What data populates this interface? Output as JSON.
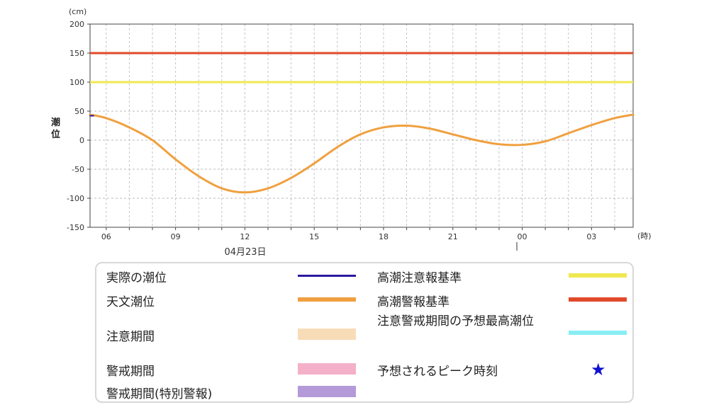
{
  "chart_data": {
    "type": "line",
    "title": "",
    "ylabel": "潮位",
    "yunit": "(cm)",
    "xunit": "(時)",
    "date_label": "04月23日",
    "ylim": [
      -150,
      200
    ],
    "yticks": [
      200,
      150,
      100,
      50,
      0,
      -50,
      -100,
      -150
    ],
    "xlim_hours": [
      5.3,
      28.8
    ],
    "xticks": [
      {
        "hour": 6,
        "label": "06"
      },
      {
        "hour": 9,
        "label": "09"
      },
      {
        "hour": 12,
        "label": "12"
      },
      {
        "hour": 15,
        "label": "15"
      },
      {
        "hour": 18,
        "label": "18"
      },
      {
        "hour": 21,
        "label": "21"
      },
      {
        "hour": 24,
        "label": "00"
      },
      {
        "hour": 27,
        "label": "03"
      }
    ],
    "grid": true,
    "reference_lines": [
      {
        "name": "高潮警報基準",
        "value": 150,
        "color": "#e04a2a"
      },
      {
        "name": "高潮注意報基準",
        "value": 100,
        "color": "#f0e850"
      }
    ],
    "series": [
      {
        "name": "天文潮位",
        "color": "#f0a040",
        "x": [
          5.3,
          6,
          7,
          8,
          9,
          10,
          11,
          12,
          13,
          14,
          15,
          16,
          17,
          18,
          19,
          20,
          21,
          22,
          23,
          24,
          25,
          26,
          27,
          28,
          28.8
        ],
        "y": [
          44,
          38,
          22,
          0,
          -33,
          -62,
          -83,
          -90,
          -83,
          -65,
          -40,
          -12,
          10,
          22,
          25,
          20,
          10,
          0,
          -7,
          -8,
          -2,
          12,
          26,
          38,
          44
        ]
      },
      {
        "name": "実際の潮位",
        "color": "#2a1aa0",
        "x": [
          5.3,
          5.45
        ],
        "y": [
          42,
          42
        ]
      }
    ]
  },
  "legend": {
    "items": [
      {
        "label": "実際の潮位",
        "kind": "line",
        "color": "#2a1aa0"
      },
      {
        "label": "天文潮位",
        "kind": "thick",
        "color": "#f0a040"
      },
      {
        "label": "注意期間",
        "kind": "swatch",
        "color": "#f8dcb8"
      },
      {
        "label": "警戒期間",
        "kind": "swatch",
        "color": "#f4b0c8"
      },
      {
        "label": "警戒期間(特別警報)",
        "kind": "swatch",
        "color": "#b49ad8"
      },
      {
        "label": "高潮注意報基準",
        "kind": "thick",
        "color": "#f0e850"
      },
      {
        "label": "高潮警報基準",
        "kind": "thick",
        "color": "#e04a2a"
      },
      {
        "label": "注意警戒期間の予想最高潮位",
        "kind": "thick",
        "color": "#88eef4"
      },
      {
        "label": "予想されるピーク時刻",
        "kind": "star",
        "color": "#1010d0",
        "symbol": "★"
      }
    ]
  }
}
